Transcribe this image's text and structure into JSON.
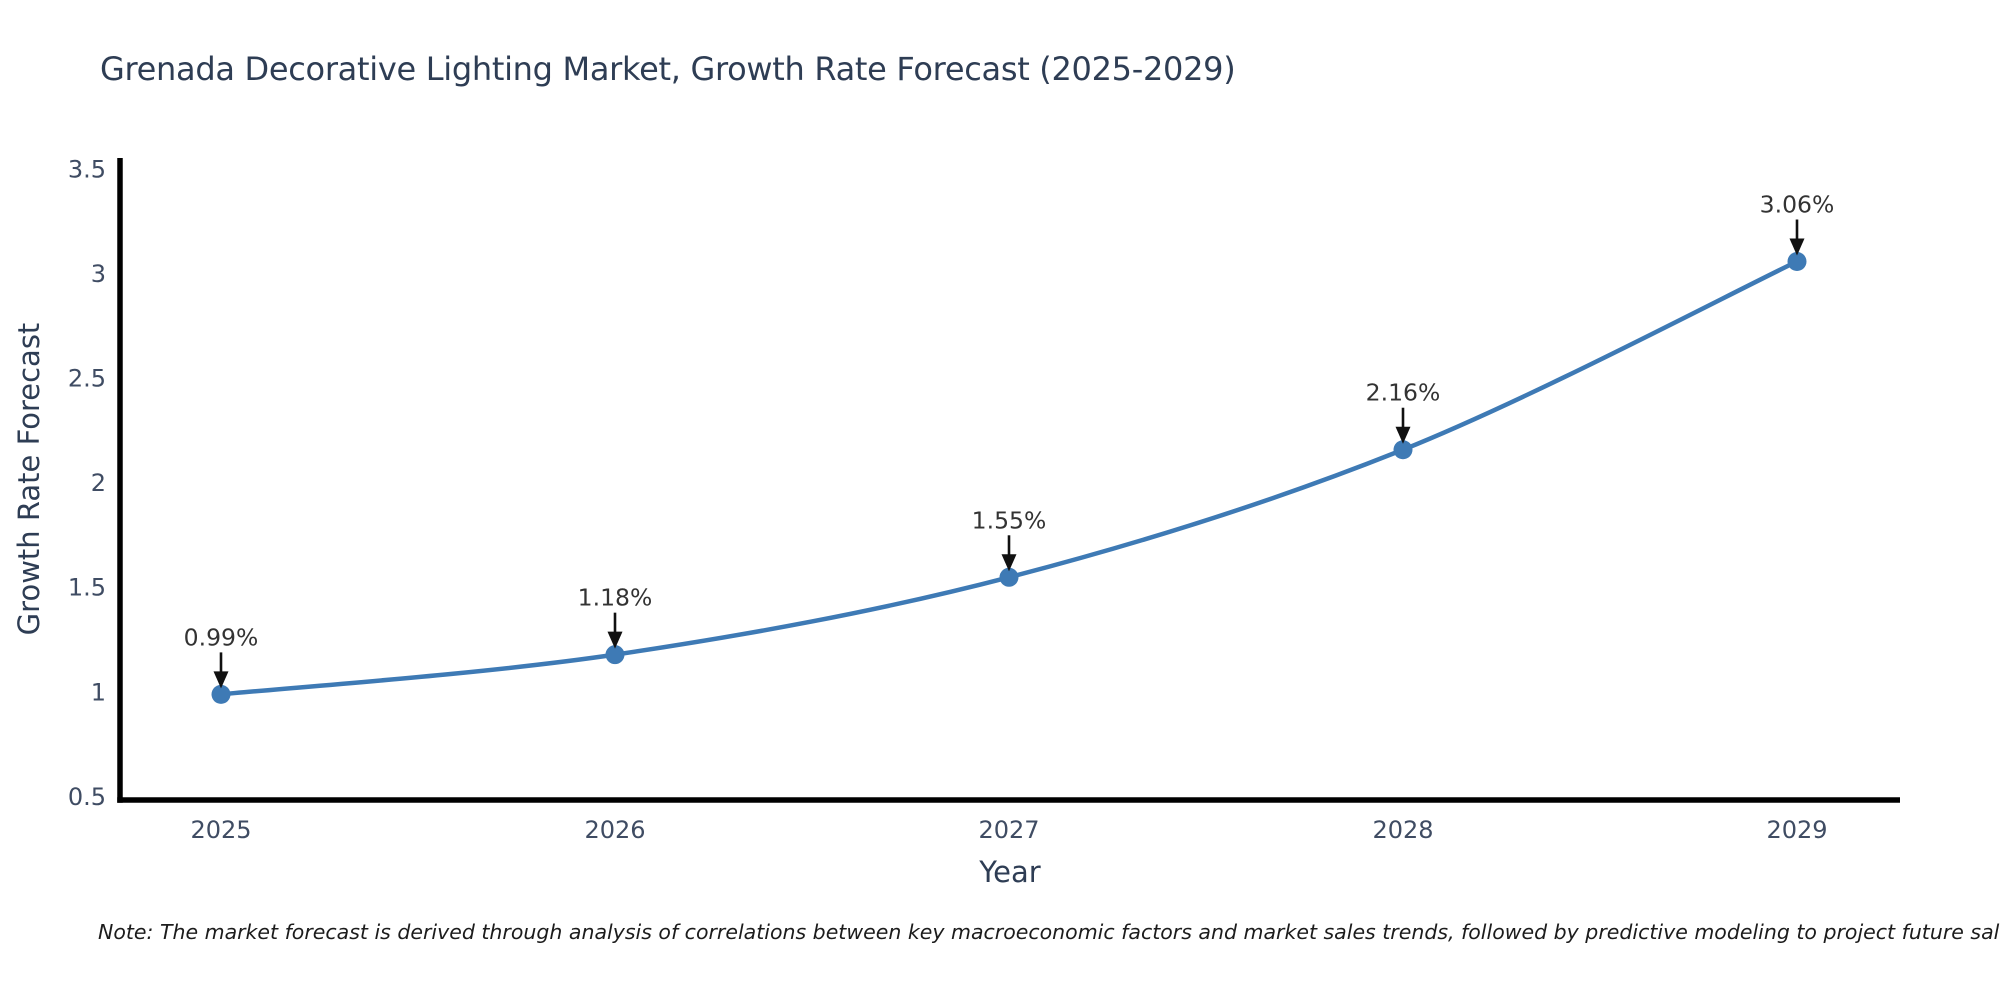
{
  "title": "Grenada Decorative Lighting Market, Growth Rate Forecast (2025-2029)",
  "note": "Note: The market forecast is derived through analysis of correlations between key macroeconomic factors and market sales trends, followed by predictive modeling to project future sales",
  "chart_data": {
    "type": "line",
    "title": "Grenada Decorative Lighting Market, Growth Rate Forecast (2025-2029)",
    "xlabel": "Year",
    "ylabel": "Growth Rate Forecast",
    "categories": [
      "2025",
      "2026",
      "2027",
      "2028",
      "2029"
    ],
    "series": [
      {
        "name": "Growth Rate Forecast",
        "values": [
          0.99,
          1.18,
          1.55,
          2.16,
          3.06
        ],
        "point_labels": [
          "0.99%",
          "1.18%",
          "1.55%",
          "2.16%",
          "3.06%"
        ]
      }
    ],
    "ytick_labels": [
      "0.5",
      "1",
      "1.5",
      "2",
      "2.5",
      "3",
      "3.5"
    ],
    "ytick_values": [
      0.5,
      1,
      1.5,
      2,
      2.5,
      3,
      3.5
    ],
    "ylim": [
      0.485,
      3.555
    ],
    "grid": false,
    "legend_position": "none",
    "line_color": "#3e7ab5",
    "marker_color": "#3e7ab5",
    "axis_color": "#000000",
    "tick_label_color": "#3f4c63",
    "annotation_text_color": "#333333",
    "annotation_arrow_color": "#111111",
    "title_color": "#2e3d54"
  }
}
